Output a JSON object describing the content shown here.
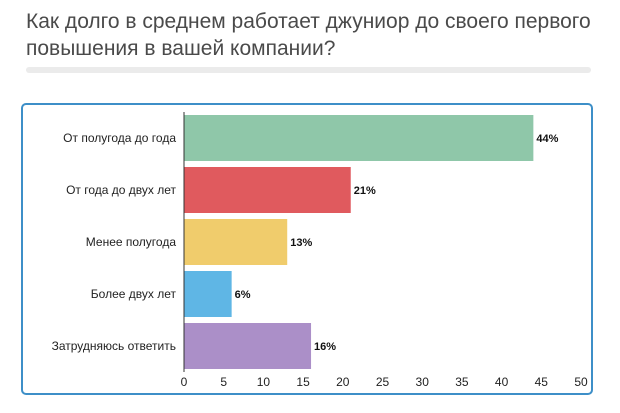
{
  "title": "Как долго в среднем работает джуниор до своего первого повышения в вашей компании?",
  "chart_data": {
    "type": "bar",
    "orientation": "horizontal",
    "categories": [
      "От полугода до года",
      "От года до двух лет",
      "Менее полугода",
      "Более двух лет",
      "Затрудняюсь ответить"
    ],
    "values": [
      44,
      21,
      13,
      6,
      16
    ],
    "value_labels": [
      "44%",
      "21%",
      "13%",
      "6%",
      "16%"
    ],
    "colors": [
      "#8fc7a9",
      "#e05a5e",
      "#f0cc6c",
      "#5fb6e5",
      "#ab8fc8"
    ],
    "xticks": [
      "0",
      "5",
      "10",
      "15",
      "20",
      "25",
      "30",
      "35",
      "40",
      "45",
      "50"
    ],
    "xlim": [
      0,
      50
    ],
    "grid": false,
    "legend": "none"
  }
}
